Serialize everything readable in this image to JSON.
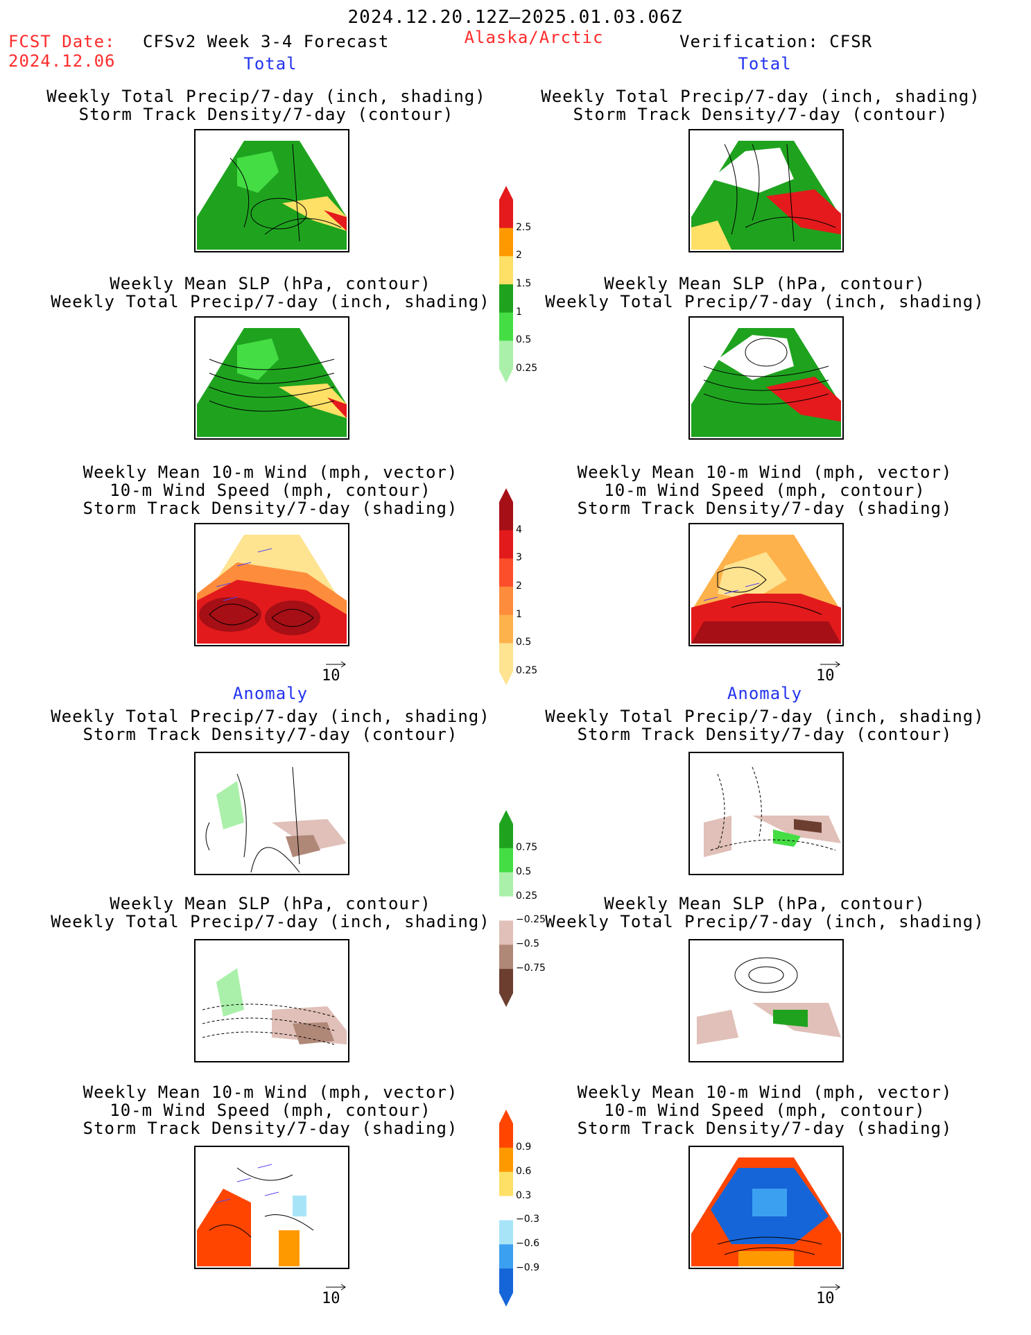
{
  "header": {
    "date_range": "2024.12.20.12Z–2025.01.03.06Z",
    "fcst_label": "FCST Date:",
    "fcst_date": "2024.12.06",
    "forecast_title": "CFSv2 Week 3-4 Forecast",
    "region": "Alaska/Arctic",
    "verification": "Verification: CFSR"
  },
  "sections": {
    "total_label": "Total",
    "anomaly_label": "Anomaly"
  },
  "panel_titles": {
    "precip_track": [
      "Weekly Total Precip/7-day (inch, shading)",
      "Storm Track Density/7-day (contour)"
    ],
    "slp_precip": [
      "Weekly Mean SLP (hPa, contour)",
      "Weekly Total Precip/7-day (inch, shading)"
    ],
    "wind_track": [
      "Weekly Mean 10-m Wind (mph, vector)",
      "10-m Wind Speed (mph, contour)",
      "Storm Track Density/7-day (shading)"
    ]
  },
  "vector_ref": "10",
  "colorbars": {
    "precip_total": {
      "labels": [
        "2.5",
        "2",
        "1.5",
        "1",
        "0.5",
        "0.25"
      ],
      "colors": [
        "#e41a1c",
        "#ff9900",
        "#ffe066",
        "#1fa31f",
        "#44dd44",
        "#aaf0aa"
      ]
    },
    "track_total": {
      "labels": [
        "4",
        "3",
        "2",
        "1",
        "0.5",
        "0.25"
      ],
      "colors": [
        "#a50f15",
        "#e31a1c",
        "#fc4e2a",
        "#fd8d3c",
        "#feb24c",
        "#fee391"
      ]
    },
    "precip_anom": {
      "labels": [
        "0.75",
        "0.5",
        "0.25",
        "−0.25",
        "−0.5",
        "−0.75"
      ],
      "colors": [
        "#1fa31f",
        "#44dd44",
        "#aaf0aa",
        "#ffffff",
        "#e0c0b8",
        "#b08878",
        "#6b3e30"
      ]
    },
    "track_anom": {
      "labels": [
        "0.9",
        "0.6",
        "0.3",
        "−0.3",
        "−0.6",
        "−0.9"
      ],
      "colors": [
        "#ff4500",
        "#ff9900",
        "#ffe066",
        "#ffffff",
        "#a8e4f8",
        "#3ca0f0",
        "#1565d8"
      ]
    }
  }
}
